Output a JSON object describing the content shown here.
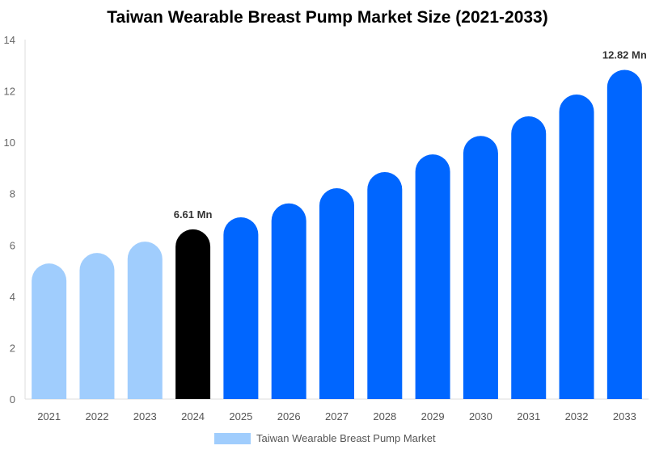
{
  "chart_data": {
    "type": "bar",
    "title": "Taiwan Wearable Breast Pump Market Size (2021-2033)",
    "categories": [
      "2021",
      "2022",
      "2023",
      "2024",
      "2025",
      "2026",
      "2027",
      "2028",
      "2029",
      "2030",
      "2031",
      "2032",
      "2033"
    ],
    "series": [
      {
        "name": "Taiwan Wearable Breast Pump Market",
        "values": [
          5.28,
          5.69,
          6.13,
          6.61,
          7.08,
          7.62,
          8.21,
          8.84,
          9.53,
          10.25,
          11.01,
          11.86,
          12.82
        ]
      }
    ],
    "bar_colors": [
      "#a0cdfd",
      "#a0cdfd",
      "#a0cdfd",
      "#000000",
      "#0066ff",
      "#0066ff",
      "#0066ff",
      "#0066ff",
      "#0066ff",
      "#0066ff",
      "#0066ff",
      "#0066ff",
      "#0066ff"
    ],
    "data_labels": {
      "3": "6.61 Mn",
      "12": "12.82 Mn"
    },
    "yticks": [
      0,
      2,
      4,
      6,
      8,
      10,
      12,
      14
    ],
    "ylim": [
      0,
      14
    ],
    "xlabel": "",
    "ylabel": "",
    "grid": false,
    "legend_position": "bottom"
  }
}
